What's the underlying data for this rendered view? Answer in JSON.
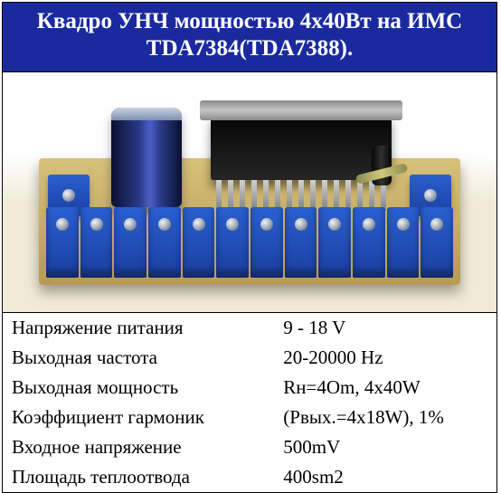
{
  "title": {
    "line1": "Квадро УНЧ мощностью 4x40Вт на ИМС",
    "line2": "TDA7384(TDA7388)."
  },
  "colors": {
    "title_bg": "#1a2a9e",
    "title_text": "#ffffff",
    "border": "#000000",
    "text": "#000000"
  },
  "specs": [
    {
      "label": "Напряжение питания",
      "value": "9 - 18 V"
    },
    {
      "label": "Выходная частота",
      "value": "20-20000 Hz"
    },
    {
      "label": "Выходная мощность",
      "value": "Rн=4Om, 4x40W"
    },
    {
      "label": "Коэффициент гармоник",
      "value": "(Рвых.=4х18W), 1%"
    },
    {
      "label": "Входное напряжение",
      "value": "500mV"
    },
    {
      "label": "Площадь теплоотвода",
      "value": "400sm2"
    }
  ]
}
